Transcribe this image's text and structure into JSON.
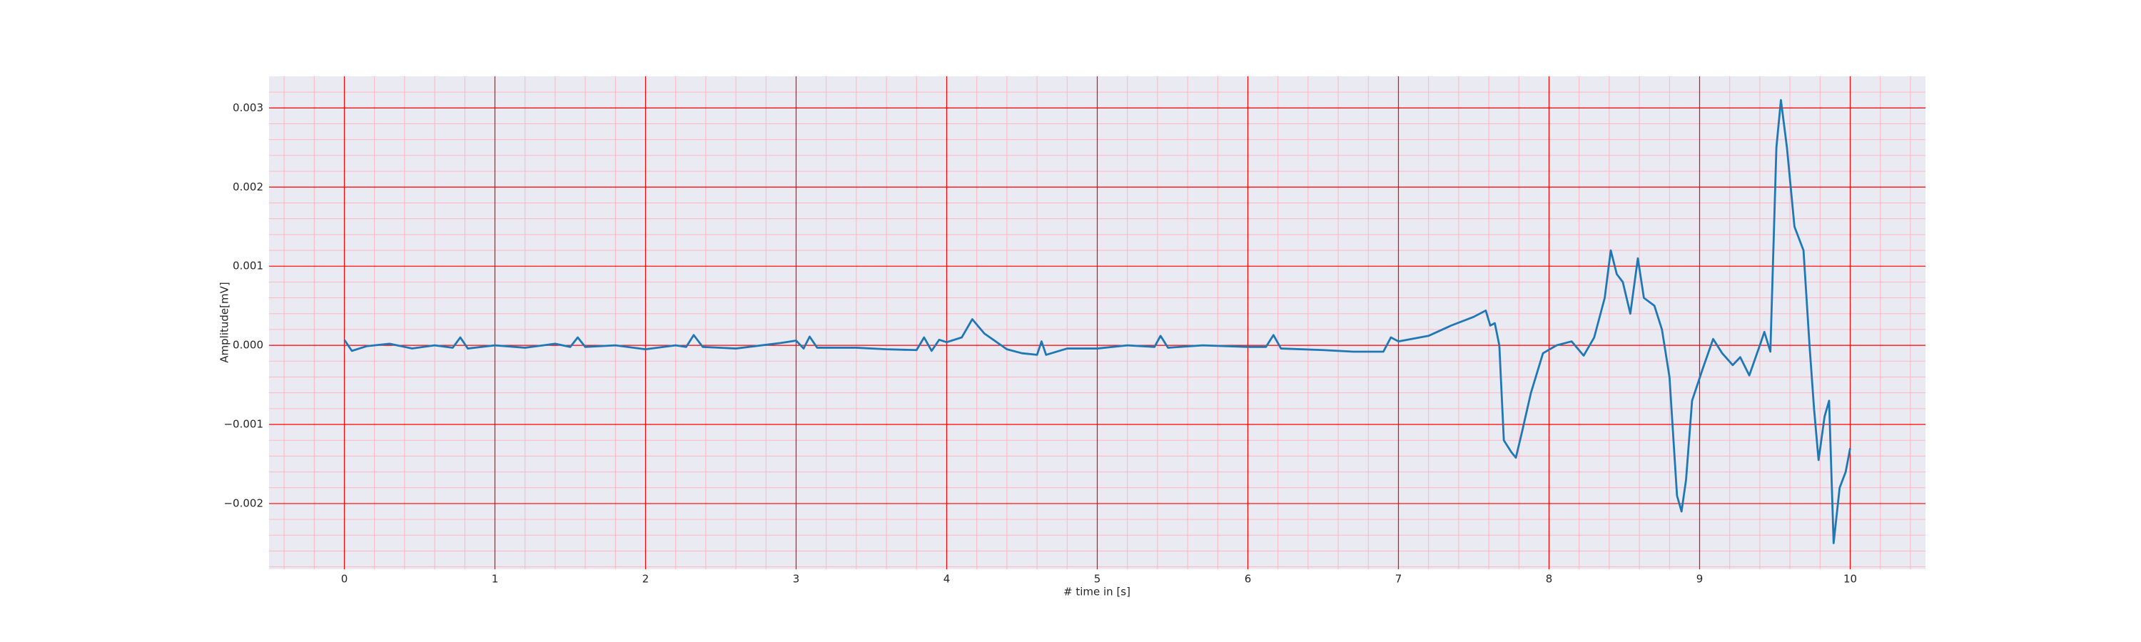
{
  "chart_data": {
    "type": "line",
    "xlabel": "# time in [s]",
    "ylabel": "Amplitude[mV]",
    "x": [
      0.0,
      0.05,
      0.15,
      0.3,
      0.45,
      0.6,
      0.72,
      0.77,
      0.82,
      1.0,
      1.2,
      1.4,
      1.5,
      1.55,
      1.6,
      1.8,
      2.0,
      2.2,
      2.27,
      2.32,
      2.38,
      2.6,
      2.9,
      3.0,
      3.05,
      3.09,
      3.14,
      3.4,
      3.6,
      3.8,
      3.85,
      3.9,
      3.95,
      4.0,
      4.1,
      4.17,
      4.25,
      4.4,
      4.5,
      4.6,
      4.63,
      4.66,
      4.8,
      5.0,
      5.2,
      5.38,
      5.42,
      5.47,
      5.7,
      6.0,
      6.12,
      6.17,
      6.22,
      6.5,
      6.7,
      6.9,
      6.95,
      7.0,
      7.2,
      7.35,
      7.5,
      7.58,
      7.61,
      7.64,
      7.67,
      7.7,
      7.75,
      7.78,
      7.82,
      7.88,
      7.96,
      8.05,
      8.15,
      8.23,
      8.3,
      8.37,
      8.41,
      8.45,
      8.49,
      8.54,
      8.59,
      8.63,
      8.7,
      8.75,
      8.8,
      8.85,
      8.88,
      8.91,
      8.95,
      9.02,
      9.09,
      9.15,
      9.22,
      9.27,
      9.33,
      9.4,
      9.43,
      9.47,
      9.51,
      9.54,
      9.58,
      9.63,
      9.69,
      9.73,
      9.76,
      9.79,
      9.83,
      9.86,
      9.89,
      9.93,
      9.97,
      10.0
    ],
    "values": [
      7e-05,
      -7e-05,
      -1e-05,
      2e-05,
      -4e-05,
      0.0,
      -3e-05,
      0.0001,
      -4e-05,
      0.0,
      -3e-05,
      2e-05,
      -2e-05,
      0.0001,
      -2e-05,
      0.0,
      -5e-05,
      0.0,
      -2e-05,
      0.00013,
      -2e-05,
      -4e-05,
      3e-05,
      6e-05,
      -4e-05,
      0.00011,
      -3e-05,
      -3e-05,
      -5e-05,
      -6e-05,
      0.0001,
      -7e-05,
      7e-05,
      4e-05,
      0.0001,
      0.00033,
      0.00015,
      -5e-05,
      -0.0001,
      -0.00012,
      5e-05,
      -0.00012,
      -4e-05,
      -4e-05,
      0.0,
      -2e-05,
      0.00012,
      -3e-05,
      0.0,
      -2e-05,
      -2e-05,
      0.00013,
      -4e-05,
      -6e-05,
      -8e-05,
      -8e-05,
      0.0001,
      5e-05,
      0.00012,
      0.00025,
      0.00036,
      0.00044,
      0.00025,
      0.00028,
      0.0,
      -0.0012,
      -0.00135,
      -0.00142,
      -0.0011,
      -0.0006,
      -0.0001,
      0.0,
      5e-05,
      -0.00013,
      0.0001,
      0.0006,
      0.0012,
      0.0009,
      0.0008,
      0.0004,
      0.0011,
      0.0006,
      0.0005,
      0.0002,
      -0.0004,
      -0.0019,
      -0.0021,
      -0.0017,
      -0.0007,
      -0.0003,
      8e-05,
      -0.0001,
      -0.00025,
      -0.00015,
      -0.00038,
      0.0,
      0.00017,
      -8e-05,
      0.0025,
      0.0031,
      0.0025,
      0.0015,
      0.0012,
      0.0,
      -0.0008,
      -0.00145,
      -0.0009,
      -0.0007,
      -0.0025,
      -0.0018,
      -0.0016,
      -0.0013
    ],
    "color": "#1f77b4",
    "xlim": [
      -0.5,
      10.5
    ],
    "xticks": [
      0,
      1,
      2,
      3,
      4,
      5,
      6,
      7,
      8,
      9,
      10
    ],
    "ylim": [
      -0.00283,
      0.0034
    ],
    "yticks": [
      {
        "value": -0.002,
        "label": "−0.002"
      },
      {
        "value": -0.001,
        "label": "−0.001"
      },
      {
        "value": 0,
        "label": "0.000"
      },
      {
        "value": 0.001,
        "label": "0.001"
      },
      {
        "value": 0.002,
        "label": "0.002"
      },
      {
        "value": 0.003,
        "label": "0.003"
      }
    ],
    "grid": true,
    "grid_color": "#ff0000",
    "minor_grid_color": "#ffb6c1",
    "minor_grid_step": {
      "x": 0.2,
      "y": 0.0002
    },
    "background": "#eaeaf2"
  }
}
